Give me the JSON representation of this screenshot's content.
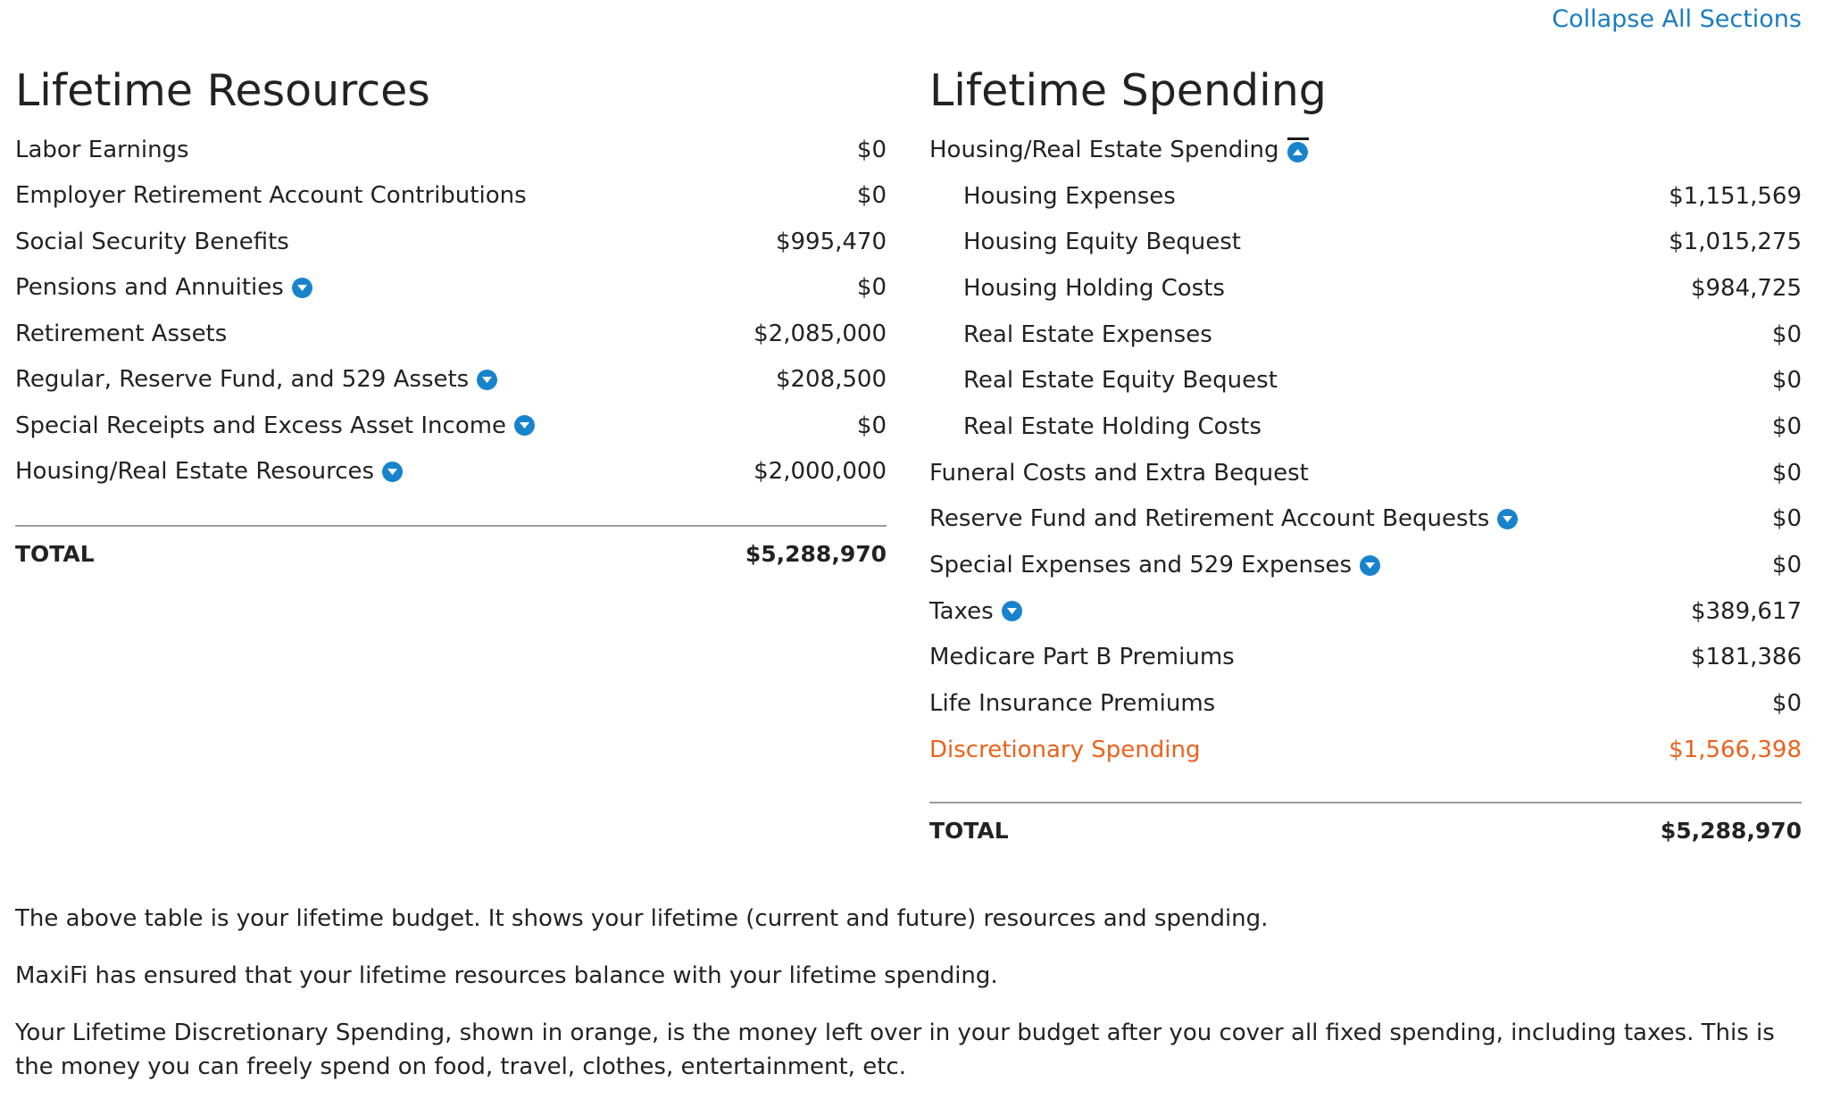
{
  "header": {
    "collapse_all": "Collapse All Sections"
  },
  "resources": {
    "title": "Lifetime Resources",
    "rows": [
      {
        "label": "Labor Earnings",
        "value": "$0",
        "expandable": false
      },
      {
        "label": "Employer Retirement Account Contributions",
        "value": "$0",
        "expandable": false
      },
      {
        "label": "Social Security Benefits",
        "value": "$995,470",
        "expandable": false
      },
      {
        "label": "Pensions and Annuities",
        "value": "$0",
        "expandable": true
      },
      {
        "label": "Retirement Assets",
        "value": "$2,085,000",
        "expandable": false
      },
      {
        "label": "Regular, Reserve Fund, and 529 Assets",
        "value": "$208,500",
        "expandable": true
      },
      {
        "label": "Special Receipts and Excess Asset Income",
        "value": "$0",
        "expandable": true
      },
      {
        "label": "Housing/Real Estate Resources",
        "value": "$2,000,000",
        "expandable": true
      }
    ],
    "total_label": "TOTAL",
    "total_value": "$5,288,970"
  },
  "spending": {
    "title": "Lifetime Spending",
    "rows": [
      {
        "label": "Housing/Real Estate Spending",
        "value": "",
        "expanded": true
      },
      {
        "label": "Housing Expenses",
        "value": "$1,151,569",
        "sub": true
      },
      {
        "label": "Housing Equity Bequest",
        "value": "$1,015,275",
        "sub": true
      },
      {
        "label": "Housing Holding Costs",
        "value": "$984,725",
        "sub": true
      },
      {
        "label": "Real Estate Expenses",
        "value": "$0",
        "sub": true
      },
      {
        "label": "Real Estate Equity Bequest",
        "value": "$0",
        "sub": true
      },
      {
        "label": "Real Estate Holding Costs",
        "value": "$0",
        "sub": true
      },
      {
        "label": "Funeral Costs and Extra Bequest",
        "value": "$0",
        "expandable": false
      },
      {
        "label": "Reserve Fund and Retirement Account Bequests",
        "value": "$0",
        "expandable": true
      },
      {
        "label": "Special Expenses and 529 Expenses",
        "value": "$0",
        "expandable": true
      },
      {
        "label": "Taxes",
        "value": "$389,617",
        "expandable": true
      },
      {
        "label": "Medicare Part B Premiums",
        "value": "$181,386",
        "expandable": false
      },
      {
        "label": "Life Insurance Premiums",
        "value": "$0",
        "expandable": false
      },
      {
        "label": "Discretionary Spending",
        "value": "$1,566,398",
        "highlight_color": "#e9621e"
      }
    ],
    "total_label": "TOTAL",
    "total_value": "$5,288,970"
  },
  "notes": [
    "The above table is your lifetime budget. It shows your lifetime (current and future) resources and spending.",
    "MaxiFi has ensured that your lifetime resources balance with your lifetime spending.",
    "Your Lifetime Discretionary Spending, shown in orange, is the money left over in your budget after you cover all fixed spending, including taxes. This is the money you can freely spend on food, travel, clothes, entertainment, etc."
  ],
  "colors": {
    "link": "#1a7cc1",
    "caret": "#1783cc",
    "highlight": "#e9621e"
  },
  "icons": {
    "expand": "chevron-down-icon",
    "collapse": "chevron-up-icon"
  }
}
